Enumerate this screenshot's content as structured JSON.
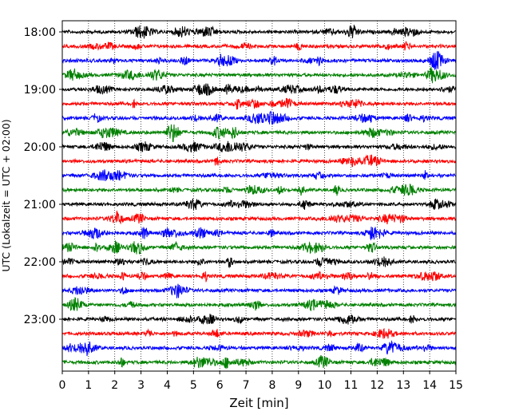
{
  "chart_data": {
    "type": "line",
    "xlabel": "Zeit  [min]",
    "ylabel": "UTC (Lokalzeit = UTC + 02:00)",
    "xlim": [
      0,
      15
    ],
    "x_ticks": [
      0,
      1,
      2,
      3,
      4,
      5,
      6,
      7,
      8,
      9,
      10,
      11,
      12,
      13,
      14,
      15
    ],
    "y_tick_labels": [
      "18:00",
      "19:00",
      "20:00",
      "21:00",
      "22:00",
      "23:00"
    ],
    "grid": "vertical dotted",
    "trace_colors": [
      "#000000",
      "#ff0000",
      "#0000ff",
      "#008000"
    ],
    "series": [
      {
        "name": "18:00",
        "color": "#000000"
      },
      {
        "name": "18:15",
        "color": "#ff0000"
      },
      {
        "name": "18:30",
        "color": "#0000ff"
      },
      {
        "name": "18:45",
        "color": "#008000"
      },
      {
        "name": "19:00",
        "color": "#000000"
      },
      {
        "name": "19:15",
        "color": "#ff0000"
      },
      {
        "name": "19:30",
        "color": "#0000ff"
      },
      {
        "name": "19:45",
        "color": "#008000"
      },
      {
        "name": "20:00",
        "color": "#000000"
      },
      {
        "name": "20:15",
        "color": "#ff0000"
      },
      {
        "name": "20:30",
        "color": "#0000ff"
      },
      {
        "name": "20:45",
        "color": "#008000"
      },
      {
        "name": "21:00",
        "color": "#000000"
      },
      {
        "name": "21:15",
        "color": "#ff0000"
      },
      {
        "name": "21:30",
        "color": "#0000ff"
      },
      {
        "name": "21:45",
        "color": "#008000"
      },
      {
        "name": "22:00",
        "color": "#000000"
      },
      {
        "name": "22:15",
        "color": "#ff0000"
      },
      {
        "name": "22:30",
        "color": "#0000ff"
      },
      {
        "name": "22:45",
        "color": "#008000"
      },
      {
        "name": "23:00",
        "color": "#000000"
      },
      {
        "name": "23:15",
        "color": "#ff0000"
      },
      {
        "name": "23:30",
        "color": "#0000ff"
      },
      {
        "name": "23:45",
        "color": "#008000"
      }
    ]
  }
}
